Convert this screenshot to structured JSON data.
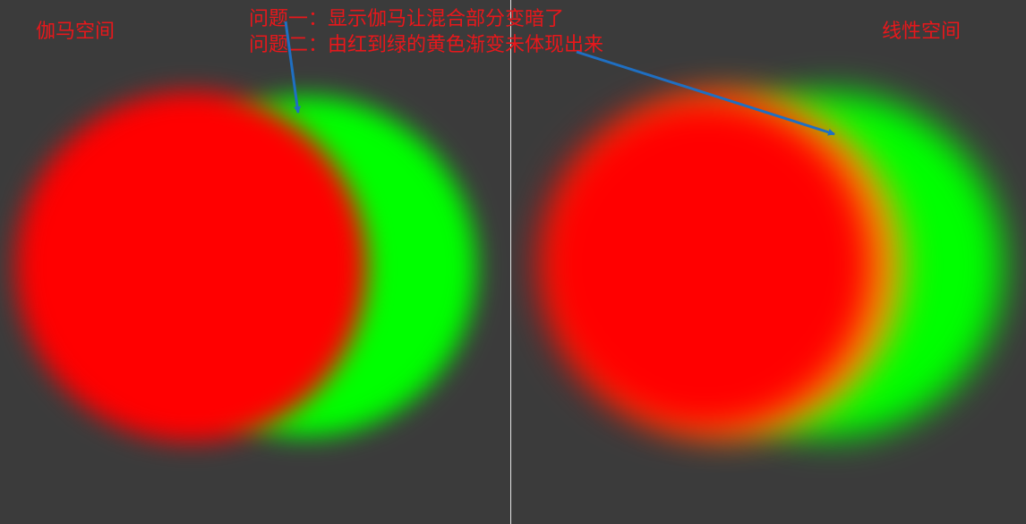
{
  "labels": {
    "gamma_space": "伽马空间",
    "linear_space": "线性空间"
  },
  "notes": {
    "problem_1": "问题一：显示伽马让混合部分变暗了",
    "problem_2": "问题二：由红到绿的黄色渐变未体现出来"
  },
  "colors": {
    "background": "#3b3b3b",
    "red": "#ff0000",
    "green": "#00ff00",
    "text": "#e8171b",
    "arrow": "#1f6fc2",
    "divider": "#e6e6e6"
  }
}
